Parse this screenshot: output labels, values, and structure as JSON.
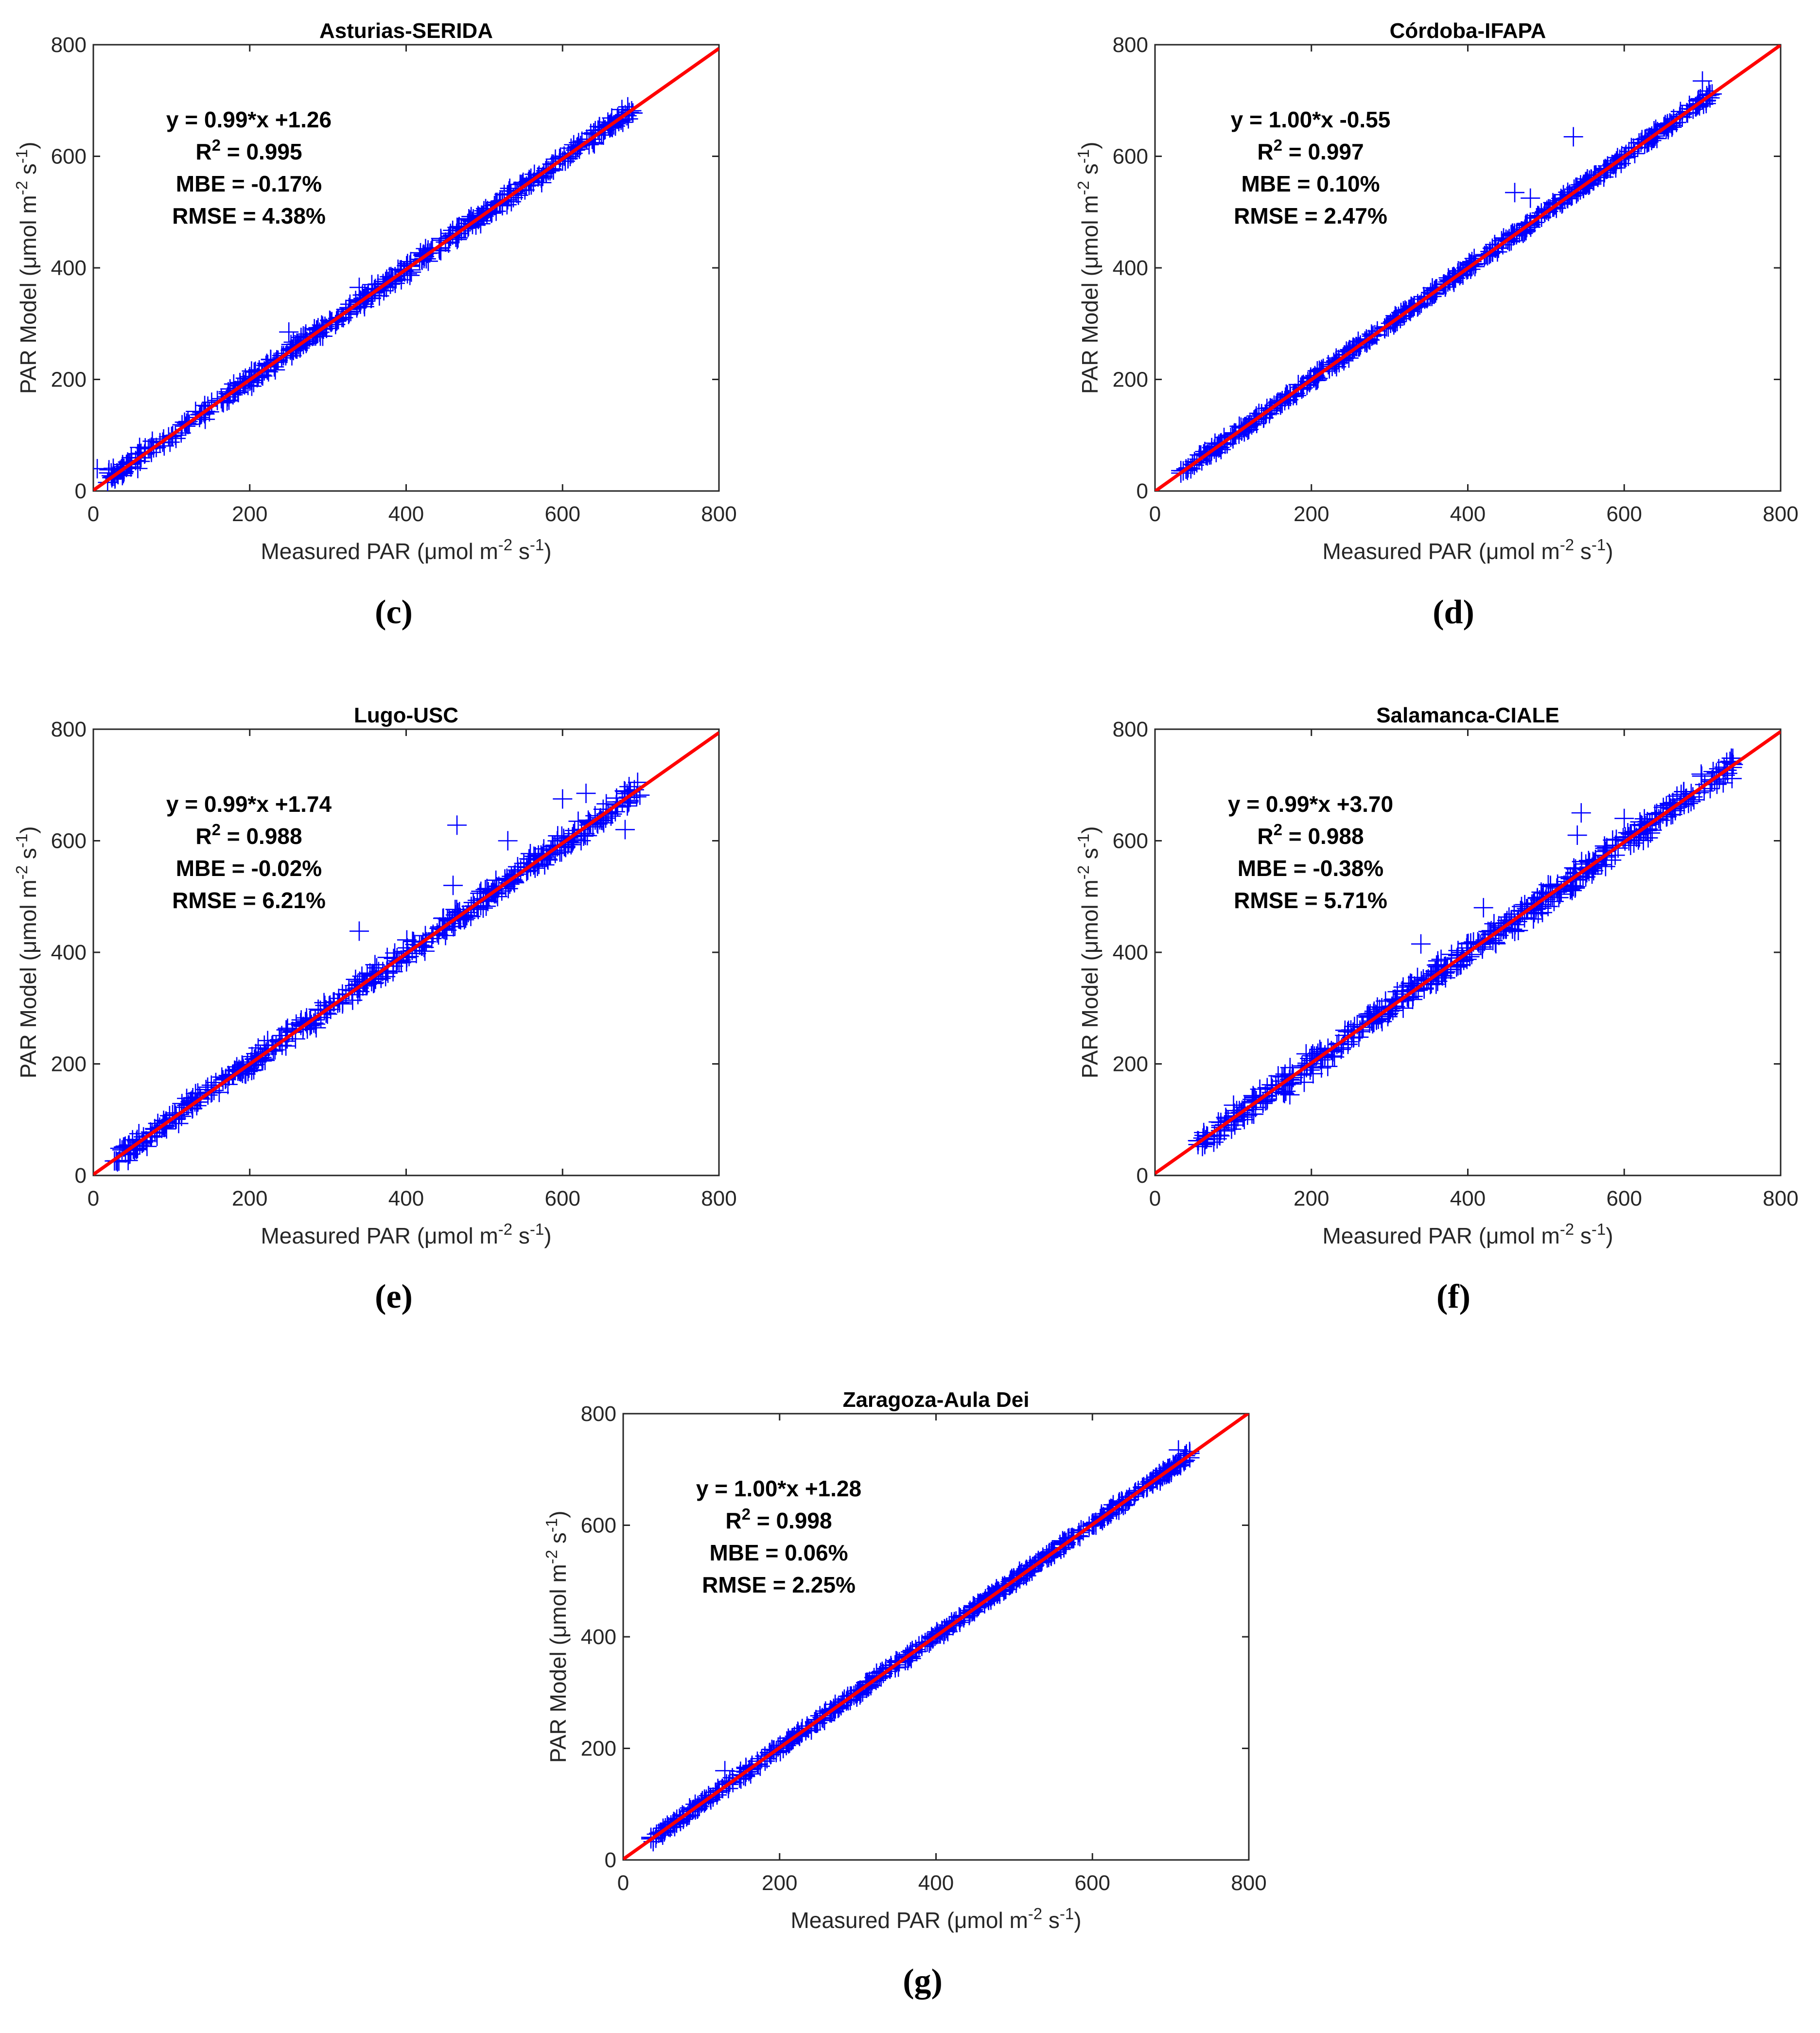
{
  "colors": {
    "points": "#0000ff",
    "fit_line": "#ff0000",
    "axes": "#262626",
    "text": "#000000"
  },
  "chart_data": [
    {
      "panel": "(c)",
      "title": "Asturias-SERIDA",
      "type": "scatter",
      "xlabel": "Measured PAR (μmol m⁻² s⁻¹)",
      "ylabel": "PAR Model (μmol m⁻² s⁻¹)",
      "xlim": [
        0,
        800
      ],
      "ylim": [
        0,
        800
      ],
      "xticks": [
        0,
        200,
        400,
        600,
        800
      ],
      "yticks": [
        0,
        200,
        400,
        600,
        800
      ],
      "stats": [
        "y = 0.99*x +1.26",
        "R² = 0.995",
        "MBE = -0.17%",
        "RMSE = 4.38%"
      ],
      "fit": {
        "slope": 0.99,
        "intercept": 1.26
      },
      "points": {
        "x_range": [
          10,
          690
        ],
        "spread": 12,
        "count": 500,
        "seed": 11
      },
      "outliers": [
        [
          5,
          40
        ],
        [
          20,
          38
        ],
        [
          340,
          365
        ],
        [
          250,
          285
        ]
      ]
    },
    {
      "panel": "(d)",
      "title": "Córdoba-IFAPA",
      "type": "scatter",
      "xlabel": "Measured PAR (μmol m⁻² s⁻¹)",
      "ylabel": "PAR Model (μmol m⁻² s⁻¹)",
      "xlim": [
        0,
        800
      ],
      "ylim": [
        0,
        800
      ],
      "xticks": [
        0,
        200,
        400,
        600,
        800
      ],
      "yticks": [
        0,
        200,
        400,
        600,
        800
      ],
      "stats": [
        "y = 1.00*x -0.55",
        "R² = 0.997",
        "MBE = 0.10%",
        "RMSE = 2.47%"
      ],
      "fit": {
        "slope": 1.0,
        "intercept": -0.55
      },
      "points": {
        "x_range": [
          30,
          715
        ],
        "spread": 8,
        "count": 520,
        "seed": 23
      },
      "outliers": [
        [
          535,
          635
        ],
        [
          460,
          535
        ],
        [
          480,
          525
        ],
        [
          700,
          735
        ]
      ]
    },
    {
      "panel": "(e)",
      "title": "Lugo-USC",
      "type": "scatter",
      "xlabel": "Measured PAR (μmol m⁻² s⁻¹)",
      "ylabel": "PAR Model (μmol m⁻² s⁻¹)",
      "xlim": [
        0,
        800
      ],
      "ylim": [
        0,
        800
      ],
      "xticks": [
        0,
        200,
        400,
        600,
        800
      ],
      "yticks": [
        0,
        200,
        400,
        600,
        800
      ],
      "stats": [
        "y = 0.99*x +1.74",
        "R² = 0.988",
        "MBE = -0.02%",
        "RMSE = 6.21%"
      ],
      "fit": {
        "slope": 0.99,
        "intercept": 1.74
      },
      "points": {
        "x_range": [
          25,
          700
        ],
        "spread": 16,
        "count": 480,
        "seed": 37
      },
      "outliers": [
        [
          465,
          628
        ],
        [
          340,
          438
        ],
        [
          600,
          675
        ],
        [
          630,
          685
        ],
        [
          680,
          620
        ],
        [
          460,
          520
        ],
        [
          530,
          600
        ],
        [
          620,
          635
        ]
      ]
    },
    {
      "panel": "(f)",
      "title": "Salamanca-CIALE",
      "type": "scatter",
      "xlabel": "Measured PAR (μmol m⁻² s⁻¹)",
      "ylabel": "PAR Model (μmol m⁻² s⁻¹)",
      "xlim": [
        0,
        800
      ],
      "ylim": [
        0,
        800
      ],
      "xticks": [
        0,
        200,
        400,
        600,
        800
      ],
      "yticks": [
        0,
        200,
        400,
        600,
        800
      ],
      "stats": [
        "y = 0.99*x +3.70",
        "R² = 0.988",
        "MBE = -0.38%",
        "RMSE = 5.71%"
      ],
      "fit": {
        "slope": 0.99,
        "intercept": 3.7
      },
      "points": {
        "x_range": [
          50,
          740
        ],
        "spread": 20,
        "count": 520,
        "seed": 53
      },
      "outliers": [
        [
          340,
          415
        ],
        [
          545,
          650
        ],
        [
          420,
          480
        ],
        [
          600,
          640
        ],
        [
          540,
          610
        ]
      ]
    },
    {
      "panel": "(g)",
      "title": "Zaragoza-Aula Dei",
      "type": "scatter",
      "xlabel": "Measured PAR (μmol m⁻² s⁻¹)",
      "ylabel": "PAR Model (μmol m⁻² s⁻¹)",
      "xlim": [
        0,
        800
      ],
      "ylim": [
        0,
        800
      ],
      "xticks": [
        0,
        200,
        400,
        600,
        800
      ],
      "yticks": [
        0,
        200,
        400,
        600,
        800
      ],
      "stats": [
        "y = 1.00*x +1.28",
        "R² = 0.998",
        "MBE = 0.06%",
        "RMSE = 2.25%"
      ],
      "fit": {
        "slope": 1.0,
        "intercept": 1.28
      },
      "points": {
        "x_range": [
          35,
          725
        ],
        "spread": 7,
        "count": 540,
        "seed": 71
      },
      "outliers": [
        [
          710,
          735
        ],
        [
          130,
          160
        ]
      ]
    }
  ]
}
